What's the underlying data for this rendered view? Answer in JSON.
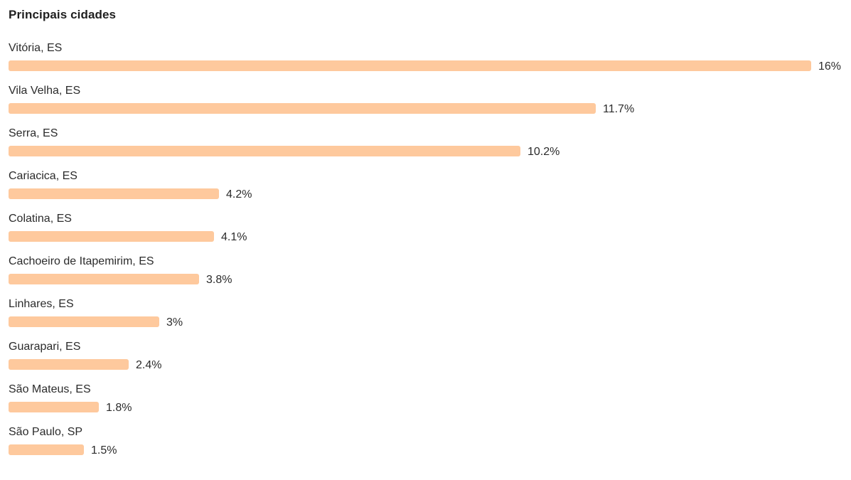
{
  "header": {
    "title": "Principais cidades"
  },
  "colors": {
    "bar": "#fec99d",
    "text": "#2b2b2b"
  },
  "chart_data": {
    "type": "bar",
    "orientation": "horizontal",
    "title": "Principais cidades",
    "categories": [
      "Vitória, ES",
      "Vila Velha, ES",
      "Serra, ES",
      "Cariacica, ES",
      "Colatina, ES",
      "Cachoeiro de Itapemirim, ES",
      "Linhares, ES",
      "Guarapari, ES",
      "São Mateus, ES",
      "São Paulo, SP"
    ],
    "values": [
      16,
      11.7,
      10.2,
      4.2,
      4.1,
      3.8,
      3,
      2.4,
      1.8,
      1.5
    ],
    "value_labels": [
      "16%",
      "11.7%",
      "10.2%",
      "4.2%",
      "4.1%",
      "3.8%",
      "3%",
      "2.4%",
      "1.8%",
      "1.5%"
    ],
    "xlim": [
      0,
      16
    ],
    "grid": false,
    "legend": "none"
  }
}
